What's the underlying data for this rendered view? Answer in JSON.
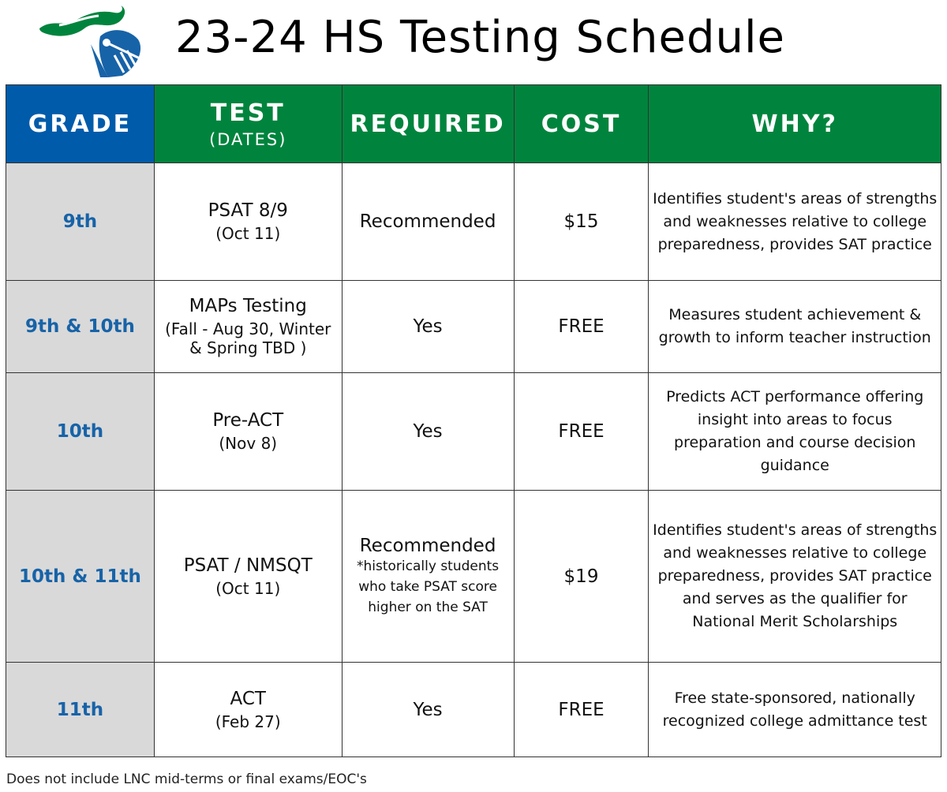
{
  "title": "23-24 HS Testing Schedule",
  "colors": {
    "grade_header": "#005BAA",
    "other_headers": "#00843D",
    "grade_column": "#D9D9D9",
    "grade_text": "#1763A8"
  },
  "logo": {
    "icon": "knight-helmet-logo"
  },
  "headers": {
    "grade": "GRADE",
    "test": "TEST",
    "test_sub": "(DATES)",
    "required": "REQUIRED",
    "cost": "COST",
    "why": "WHY?"
  },
  "rows": [
    {
      "grade": "9th",
      "test": "PSAT 8/9",
      "dates": "(Oct 11)",
      "required": "Recommended",
      "note": "",
      "cost": "$15",
      "why": "Identifies student's areas of strengths and weaknesses relative to college preparedness, provides SAT practice"
    },
    {
      "grade": "9th & 10th",
      "test": "MAPs Testing",
      "dates": "(Fall - Aug 30, Winter & Spring TBD )",
      "required": "Yes",
      "note": "",
      "cost": "FREE",
      "why": "Measures student achievement & growth to inform teacher instruction"
    },
    {
      "grade": "10th",
      "test": "Pre-ACT",
      "dates": "(Nov 8)",
      "required": "Yes",
      "note": "",
      "cost": "FREE",
      "why": "Predicts ACT performance offering insight into areas to focus preparation and course decision guidance"
    },
    {
      "grade": "10th & 11th",
      "test": "PSAT / NMSQT",
      "dates": "(Oct 11)",
      "required": "Recommended",
      "note": "*historically students who take PSAT score higher on the SAT",
      "cost": "$19",
      "why": "Identifies student's areas of strengths and weaknesses relative to college preparedness, provides SAT practice and serves as the qualifier for National Merit Scholarships"
    },
    {
      "grade": "11th",
      "test": "ACT",
      "dates": "(Feb 27)",
      "required": "Yes",
      "note": "",
      "cost": "FREE",
      "why": "Free state-sponsored, nationally recognized college admittance test"
    }
  ],
  "footer": "Does not include LNC mid-terms or final exams/EOC's"
}
